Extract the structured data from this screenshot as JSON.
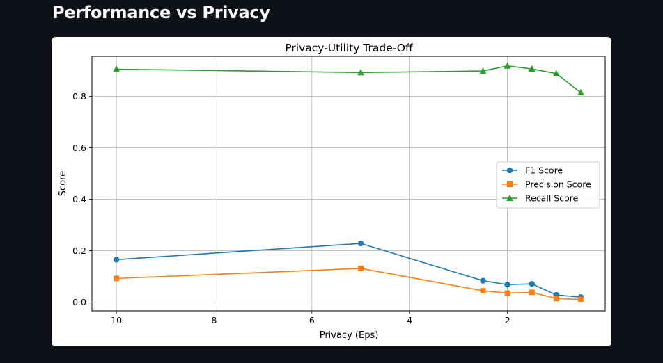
{
  "page": {
    "title": "Performance vs Privacy"
  },
  "chart_data": {
    "type": "line",
    "title": "Privacy-Utility Trade-Off",
    "xlabel": "Privacy (Eps)",
    "ylabel": "Score",
    "x_axis_inverted": true,
    "xlim": [
      10.5,
      0.0
    ],
    "ylim": [
      -0.034,
      0.955
    ],
    "xticks": [
      10,
      8,
      6,
      4,
      2
    ],
    "yticks": [
      0.0,
      0.2,
      0.4,
      0.6,
      0.8
    ],
    "ytick_labels": [
      "0.0",
      "0.2",
      "0.4",
      "0.6",
      "0.8"
    ],
    "grid": true,
    "legend_position": "center-right",
    "x": [
      10,
      5,
      2.5,
      2,
      1.5,
      1,
      0.5
    ],
    "series": [
      {
        "name": "F1 Score",
        "color": "#1f77b4",
        "marker": "circle",
        "values": [
          0.165,
          0.228,
          0.083,
          0.068,
          0.071,
          0.028,
          0.019
        ]
      },
      {
        "name": "Precision Score",
        "color": "#ff7f0e",
        "marker": "square",
        "values": [
          0.092,
          0.131,
          0.044,
          0.035,
          0.038,
          0.014,
          0.01
        ]
      },
      {
        "name": "Recall Score",
        "color": "#2ca02c",
        "marker": "triangle",
        "values": [
          0.905,
          0.892,
          0.898,
          0.918,
          0.906,
          0.888,
          0.814
        ]
      }
    ]
  }
}
